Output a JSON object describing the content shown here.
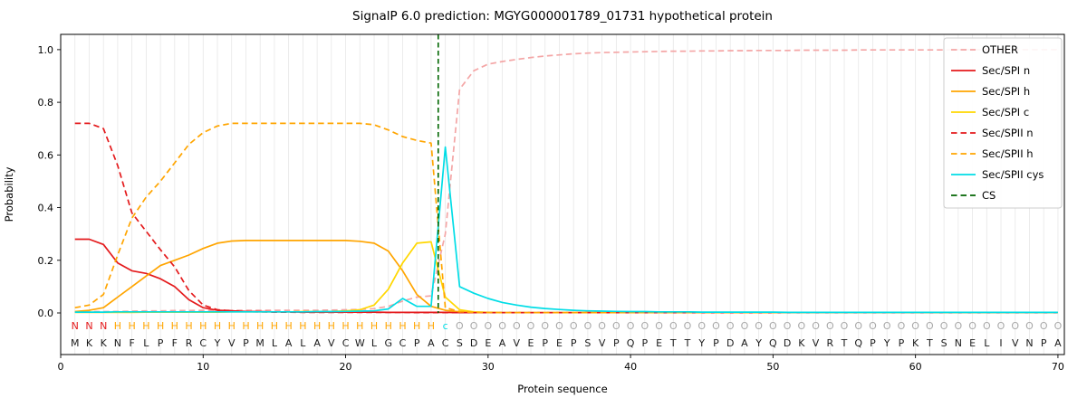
{
  "title": "SignalP 6.0 prediction: MGYG000001789_01731 hypothetical protein",
  "chart_data": {
    "type": "line",
    "title": "SignalP 6.0 prediction: MGYG000001789_01731 hypothetical protein",
    "xlabel": "Protein sequence",
    "ylabel": "Probability",
    "xlim": [
      0,
      70.45
    ],
    "ylim": [
      -0.158,
      1.058
    ],
    "xtick_values": [
      0,
      10,
      20,
      30,
      40,
      50,
      60,
      70
    ],
    "xtick_labels": [
      "0",
      "10",
      "20",
      "30",
      "40",
      "50",
      "60",
      "70"
    ],
    "ytick_values": [
      0.0,
      0.2,
      0.4,
      0.6,
      0.8,
      1.0
    ],
    "ytick_labels": [
      "0.0",
      "0.2",
      "0.4",
      "0.6",
      "0.8",
      "1.0"
    ],
    "grid": "vertical line at every residue position",
    "legend_position": "upper-right",
    "grid_color": "#e7e7e7",
    "sequence": "MKKNFLPFRCYVPMLALAVCWLGCPACSDEAVEPEPSVPQPETTYPDAYQDKVRTQPYPKTSNELIVNPA",
    "annotation_letters": "NNNHHHHHHHHHHHHHHHHHHHHHHHcOOOOOOOOOOOOOOOOOOOOOOOOOOOOOOOOOOOOOOOOOOO",
    "annotation_colors": {
      "N": "#e41a1c",
      "H": "#ffa500",
      "c": "#00dde6",
      "O": "#a8a8a8"
    },
    "sequence_color": "#1a1a1a",
    "cs_marker": {
      "name": "CS",
      "x": 26.5,
      "color": "#006400",
      "dashed": true
    },
    "series": [
      {
        "name": "OTHER",
        "color": "#f4a6a6",
        "dashed": true,
        "values": [
          0.005,
          0.005,
          0.005,
          0.006,
          0.007,
          0.008,
          0.008,
          0.009,
          0.009,
          0.01,
          0.01,
          0.01,
          0.01,
          0.01,
          0.01,
          0.01,
          0.01,
          0.01,
          0.011,
          0.012,
          0.013,
          0.016,
          0.025,
          0.045,
          0.06,
          0.065,
          0.3,
          0.85,
          0.92,
          0.945,
          0.955,
          0.963,
          0.97,
          0.976,
          0.98,
          0.984,
          0.987,
          0.989,
          0.99,
          0.991,
          0.992,
          0.993,
          0.994,
          0.994,
          0.995,
          0.995,
          0.996,
          0.996,
          0.997,
          0.997,
          0.997,
          0.998,
          0.998,
          0.998,
          0.998,
          0.999,
          0.999,
          0.999,
          0.999,
          0.999,
          0.999,
          0.999,
          1.0,
          1.0,
          1.0,
          1.0,
          1.0,
          1.0,
          1.0,
          1.0
        ]
      },
      {
        "name": "Sec/SPI n",
        "color": "#e41a1c",
        "dashed": false,
        "values": [
          0.28,
          0.28,
          0.26,
          0.19,
          0.16,
          0.15,
          0.13,
          0.1,
          0.05,
          0.02,
          0.01,
          0.008,
          0.006,
          0.005,
          0.004,
          0.004,
          0.003,
          0.003,
          0.003,
          0.003,
          0.003,
          0.003,
          0.002,
          0.002,
          0.002,
          0.002,
          0.002,
          0.001,
          0.001,
          0.001,
          0.001,
          0.001,
          0.001,
          0.001,
          0.001,
          0.001,
          0.001,
          0.001,
          0.001,
          0.001,
          0.001,
          0.001,
          0.001,
          0.001,
          0.001,
          0.001,
          0.001,
          0.001,
          0.001,
          0.001,
          0.001,
          0.001,
          0.001,
          0.001,
          0.001,
          0.001,
          0.001,
          0.001,
          0.001,
          0.001,
          0.001,
          0.001,
          0.001,
          0.001,
          0.001,
          0.001,
          0.001,
          0.001,
          0.001,
          0.001
        ]
      },
      {
        "name": "Sec/SPI h",
        "color": "#ffa500",
        "dashed": false,
        "values": [
          0.005,
          0.01,
          0.02,
          0.06,
          0.1,
          0.14,
          0.18,
          0.2,
          0.22,
          0.245,
          0.265,
          0.273,
          0.275,
          0.275,
          0.275,
          0.275,
          0.275,
          0.275,
          0.275,
          0.275,
          0.272,
          0.265,
          0.235,
          0.16,
          0.07,
          0.025,
          0.01,
          0.004,
          0.002,
          0.002,
          0.001,
          0.001,
          0.001,
          0.001,
          0.001,
          0.001,
          0.001,
          0.001,
          0.001,
          0.001,
          0.001,
          0.001,
          0.001,
          0.001,
          0.001,
          0.001,
          0.001,
          0.001,
          0.001,
          0.001,
          0.001,
          0.001,
          0.001,
          0.001,
          0.001,
          0.001,
          0.001,
          0.001,
          0.001,
          0.001,
          0.001,
          0.001,
          0.001,
          0.001,
          0.001,
          0.001,
          0.001,
          0.001,
          0.001,
          0.001
        ]
      },
      {
        "name": "Sec/SPI c",
        "color": "#ffd700",
        "dashed": false,
        "values": [
          0.002,
          0.002,
          0.002,
          0.002,
          0.002,
          0.003,
          0.003,
          0.003,
          0.003,
          0.003,
          0.003,
          0.004,
          0.004,
          0.004,
          0.004,
          0.004,
          0.005,
          0.005,
          0.006,
          0.008,
          0.012,
          0.03,
          0.09,
          0.19,
          0.265,
          0.27,
          0.06,
          0.012,
          0.004,
          0.002,
          0.001,
          0.001,
          0.001,
          0.001,
          0.001,
          0.001,
          0.001,
          0.001,
          0.001,
          0.001,
          0.001,
          0.001,
          0.001,
          0.001,
          0.001,
          0.001,
          0.001,
          0.001,
          0.001,
          0.001,
          0.001,
          0.001,
          0.001,
          0.001,
          0.001,
          0.001,
          0.001,
          0.001,
          0.001,
          0.001,
          0.001,
          0.001,
          0.001,
          0.001,
          0.001,
          0.001,
          0.001,
          0.001,
          0.001,
          0.001
        ]
      },
      {
        "name": "Sec/SPII n",
        "color": "#e41a1c",
        "dashed": true,
        "values": [
          0.72,
          0.72,
          0.7,
          0.56,
          0.38,
          0.31,
          0.24,
          0.175,
          0.085,
          0.03,
          0.012,
          0.008,
          0.005,
          0.004,
          0.003,
          0.003,
          0.002,
          0.002,
          0.002,
          0.002,
          0.002,
          0.002,
          0.002,
          0.002,
          0.001,
          0.001,
          0.001,
          0.001,
          0.001,
          0.001,
          0.001,
          0.001,
          0.001,
          0.001,
          0.001,
          0.001,
          0.001,
          0.001,
          0.001,
          0.001,
          0.001,
          0.001,
          0.001,
          0.001,
          0.001,
          0.001,
          0.001,
          0.001,
          0.001,
          0.001,
          0.001,
          0.001,
          0.001,
          0.001,
          0.001,
          0.001,
          0.001,
          0.001,
          0.001,
          0.001,
          0.001,
          0.001,
          0.001,
          0.001,
          0.001,
          0.001,
          0.001,
          0.001,
          0.001,
          0.001
        ]
      },
      {
        "name": "Sec/SPII h",
        "color": "#ffa500",
        "dashed": true,
        "values": [
          0.02,
          0.03,
          0.07,
          0.22,
          0.36,
          0.44,
          0.5,
          0.57,
          0.64,
          0.685,
          0.71,
          0.72,
          0.72,
          0.72,
          0.72,
          0.72,
          0.72,
          0.72,
          0.72,
          0.72,
          0.72,
          0.715,
          0.695,
          0.67,
          0.655,
          0.645,
          0.02,
          0.005,
          0.002,
          0.002,
          0.001,
          0.001,
          0.001,
          0.001,
          0.001,
          0.001,
          0.001,
          0.001,
          0.001,
          0.001,
          0.001,
          0.001,
          0.001,
          0.001,
          0.001,
          0.001,
          0.001,
          0.001,
          0.001,
          0.001,
          0.001,
          0.001,
          0.001,
          0.001,
          0.001,
          0.001,
          0.001,
          0.001,
          0.001,
          0.001,
          0.001,
          0.001,
          0.001,
          0.001,
          0.001,
          0.001,
          0.001,
          0.001,
          0.001,
          0.001
        ]
      },
      {
        "name": "Sec/SPII cys",
        "color": "#00dde6",
        "dashed": false,
        "values": [
          0.003,
          0.003,
          0.003,
          0.004,
          0.004,
          0.004,
          0.004,
          0.004,
          0.004,
          0.004,
          0.004,
          0.004,
          0.004,
          0.004,
          0.004,
          0.004,
          0.004,
          0.005,
          0.005,
          0.006,
          0.007,
          0.008,
          0.015,
          0.055,
          0.025,
          0.025,
          0.63,
          0.1,
          0.075,
          0.055,
          0.04,
          0.03,
          0.022,
          0.017,
          0.013,
          0.01,
          0.008,
          0.007,
          0.006,
          0.005,
          0.005,
          0.004,
          0.004,
          0.004,
          0.003,
          0.003,
          0.003,
          0.003,
          0.003,
          0.003,
          0.002,
          0.002,
          0.002,
          0.002,
          0.002,
          0.002,
          0.002,
          0.002,
          0.002,
          0.002,
          0.002,
          0.002,
          0.002,
          0.002,
          0.002,
          0.002,
          0.002,
          0.002,
          0.002,
          0.002
        ]
      }
    ],
    "legend_entries": [
      "OTHER",
      "Sec/SPI n",
      "Sec/SPI h",
      "Sec/SPI c",
      "Sec/SPII n",
      "Sec/SPII h",
      "Sec/SPII cys",
      "CS"
    ]
  }
}
